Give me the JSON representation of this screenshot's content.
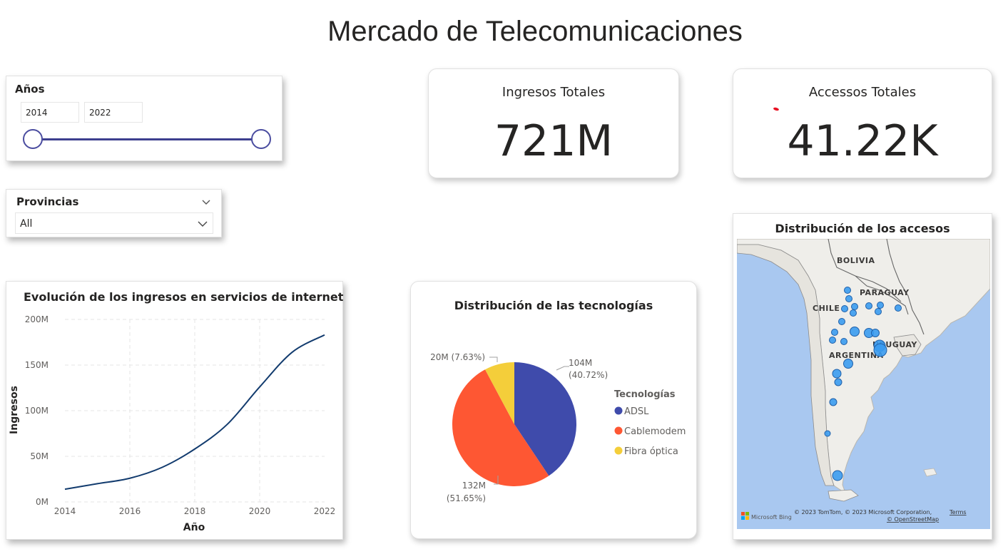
{
  "page": {
    "title": "Mercado de Telecomunicaciones"
  },
  "slicer_years": {
    "label": "Años",
    "start": "2014",
    "end": "2022"
  },
  "slicer_provinces": {
    "label": "Provincias",
    "value": "All"
  },
  "kpis": {
    "ingresos": {
      "label": "Ingresos Totales",
      "value": "721M"
    },
    "accesos": {
      "label": "Accessos Totales",
      "value": "41.22K"
    }
  },
  "line_chart": {
    "title": "Evolución de los ingresos en servicios de internet",
    "xlabel": "Año",
    "ylabel": "Ingresos",
    "x_ticks": [
      "2014",
      "2016",
      "2018",
      "2020",
      "2022"
    ],
    "y_ticks": [
      "0M",
      "50M",
      "100M",
      "150M",
      "200M"
    ]
  },
  "pie_chart": {
    "title": "Distribución de las tecnologías",
    "legend_title": "Tecnologías",
    "labels": {
      "adsl": [
        "104M",
        "(40.72%)"
      ],
      "cablemodem": [
        "132M",
        "(51.65%)"
      ],
      "fibra": "20M (7.63%)"
    }
  },
  "map": {
    "title": "Distribución de los accesos",
    "countries": {
      "bolivia": "BOLIVIA",
      "paraguay": "PARAGUAY",
      "chile": "CHILE",
      "argentina": "ARGENTINA",
      "uruguay": "URUGUAY"
    },
    "brand": "Microsoft Bing",
    "copyright": "© 2023 TomTom, © 2023 Microsoft Corporation,",
    "terms": "Terms",
    "osm": "© OpenStreetMap",
    "marker_color": "#3a9bf0"
  },
  "colors": {
    "line": "#123b6e",
    "adsl": "#3f4bab",
    "cablemodem": "#fe5733",
    "fibra": "#f4ce3a",
    "slider": "#3d3f8f"
  },
  "chart_data": [
    {
      "type": "line",
      "title": "Evolución de los ingresos en servicios de internet",
      "xlabel": "Año",
      "ylabel": "Ingresos",
      "x": [
        2014,
        2015,
        2016,
        2017,
        2018,
        2019,
        2020,
        2021,
        2022
      ],
      "series": [
        {
          "values": [
            14,
            20,
            26,
            38,
            58,
            85,
            126,
            164,
            183
          ]
        }
      ],
      "xlim": [
        2014,
        2022
      ],
      "ylim": [
        0,
        200
      ],
      "y_unit": "M",
      "grid": true
    },
    {
      "type": "pie",
      "title": "Distribución de las tecnologías",
      "legend_title": "Tecnologías",
      "categories": [
        "ADSL",
        "Cablemodem",
        "Fibra óptica"
      ],
      "values": [
        104,
        132,
        20
      ],
      "percentages": [
        40.72,
        51.65,
        7.63
      ],
      "legend_position": "right"
    }
  ]
}
